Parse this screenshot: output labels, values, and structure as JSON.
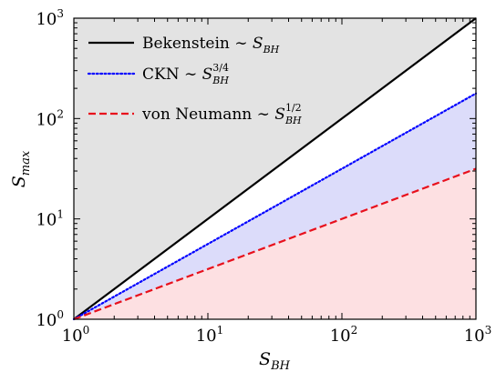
{
  "chart_data": {
    "type": "line",
    "x_scale": "log",
    "y_scale": "log",
    "xlim": [
      1,
      1000
    ],
    "ylim": [
      1,
      1000
    ],
    "grid": false,
    "legend_position": "top-left",
    "xlabel": {
      "main": "S",
      "sub": "BH"
    },
    "ylabel": {
      "main": "S",
      "sub": "max"
    },
    "x_ticks": [
      {
        "base": "10",
        "exp": "0"
      },
      {
        "base": "10",
        "exp": "1"
      },
      {
        "base": "10",
        "exp": "2"
      },
      {
        "base": "10",
        "exp": "3"
      }
    ],
    "y_ticks": [
      {
        "base": "10",
        "exp": "0"
      },
      {
        "base": "10",
        "exp": "1"
      },
      {
        "base": "10",
        "exp": "2"
      },
      {
        "base": "10",
        "exp": "3"
      }
    ],
    "series": [
      {
        "name": "Bekenstein ~ S_BH",
        "label_text": "Bekenstein ∼ ",
        "label_math": "S",
        "label_sub": "BH",
        "label_sup": "",
        "exponent": 1,
        "color": "#000000",
        "dash": "solid",
        "x": [
          1,
          1000
        ],
        "y": [
          1,
          1000
        ]
      },
      {
        "name": "CKN ~ S_BH^(3/4)",
        "label_text": "CKN ∼ ",
        "label_math": "S",
        "label_sub": "BH",
        "label_sup": "3/4",
        "exponent": 0.75,
        "color": "#0000ff",
        "dash": "dotted",
        "x": [
          1,
          1000
        ],
        "y": [
          1,
          177.8
        ]
      },
      {
        "name": "von Neumann ~ S_BH^(1/2)",
        "label_text": "von Neumann ∼ ",
        "label_math": "S",
        "label_sub": "BH",
        "label_sup": "1/2",
        "exponent": 0.5,
        "color": "#e8101c",
        "dash": "dashed",
        "x": [
          1,
          1000
        ],
        "y": [
          1,
          31.62
        ]
      }
    ],
    "shaded_regions": [
      {
        "between": "Bekenstein to top",
        "color": "#e3e3e3"
      },
      {
        "between": "von Neumann to CKN",
        "color": "#dcdcfa"
      },
      {
        "between": "bottom to von Neumann",
        "color": "#fde0e2"
      }
    ]
  }
}
